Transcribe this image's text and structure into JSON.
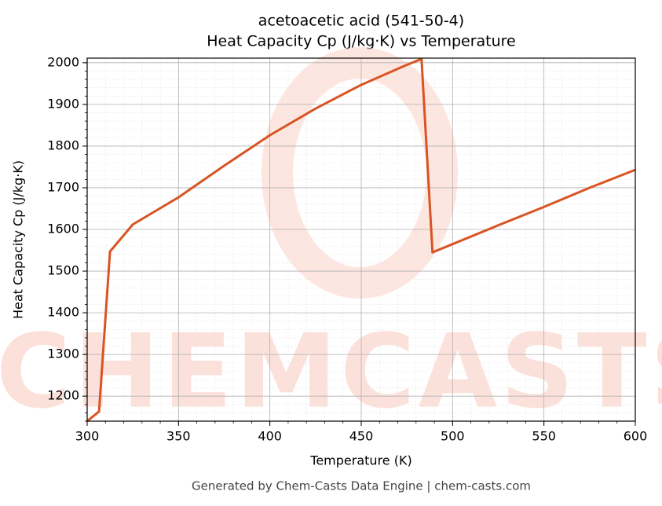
{
  "chart_data": {
    "type": "line",
    "title": "acetoacetic acid (541-50-4)",
    "subtitle": "Heat Capacity Cp (J/kg·K) vs Temperature",
    "x_label": "Temperature (K)",
    "y_label": "Heat Capacity Cp (J/kg·K)",
    "footer": "Generated by Chem-Casts Data Engine | chem-casts.com",
    "watermark": "CHEMCASTS",
    "x": [
      300,
      306.5,
      312.5,
      325,
      350,
      375,
      400,
      425,
      450,
      475,
      483,
      489,
      525,
      550,
      575,
      600
    ],
    "series": [
      {
        "name": "Cp",
        "color": "#d95424",
        "values": [
          1140,
          1163,
          1547,
          1612,
          1677,
          1753,
          1826,
          1890,
          1947,
          1995,
          2009,
          1545,
          1610,
          1654,
          1700,
          1743
        ]
      }
    ],
    "xlim": [
      300,
      600
    ],
    "ylim": [
      1140,
      2011
    ],
    "xticks": [
      300,
      350,
      400,
      450,
      500,
      550,
      600
    ],
    "yticks": [
      1200,
      1300,
      1400,
      1500,
      1600,
      1700,
      1800,
      1900,
      2000
    ],
    "grid": true,
    "minor_grid": true
  }
}
